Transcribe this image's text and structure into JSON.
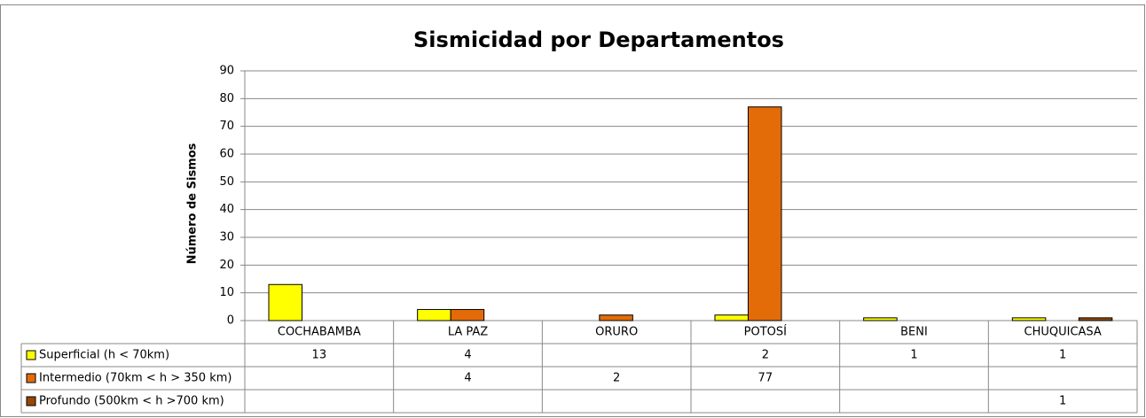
{
  "chart_data": {
    "type": "bar",
    "title": "Sismicidad por Departamentos",
    "y_label": "Número de Sismos",
    "categories": [
      "COCHABAMBA",
      "LA PAZ",
      "ORURO",
      "POTOSÍ",
      "BENI",
      "CHUQUICASA"
    ],
    "series": [
      {
        "name": "Superficial (h < 70km)",
        "color": "#ffff00",
        "values": [
          13,
          4,
          null,
          2,
          1,
          1
        ]
      },
      {
        "name": "Intermedio (70km < h > 350 km)",
        "color": "#e36c09",
        "values": [
          null,
          4,
          2,
          77,
          null,
          null
        ]
      },
      {
        "name": "Profundo (500km < h >700 km)",
        "color": "#974806",
        "values": [
          null,
          null,
          null,
          null,
          null,
          1
        ]
      }
    ],
    "ylim": [
      0,
      90
    ],
    "yticks": [
      0,
      10,
      20,
      30,
      40,
      50,
      60,
      70,
      80,
      90
    ],
    "grid": true
  }
}
